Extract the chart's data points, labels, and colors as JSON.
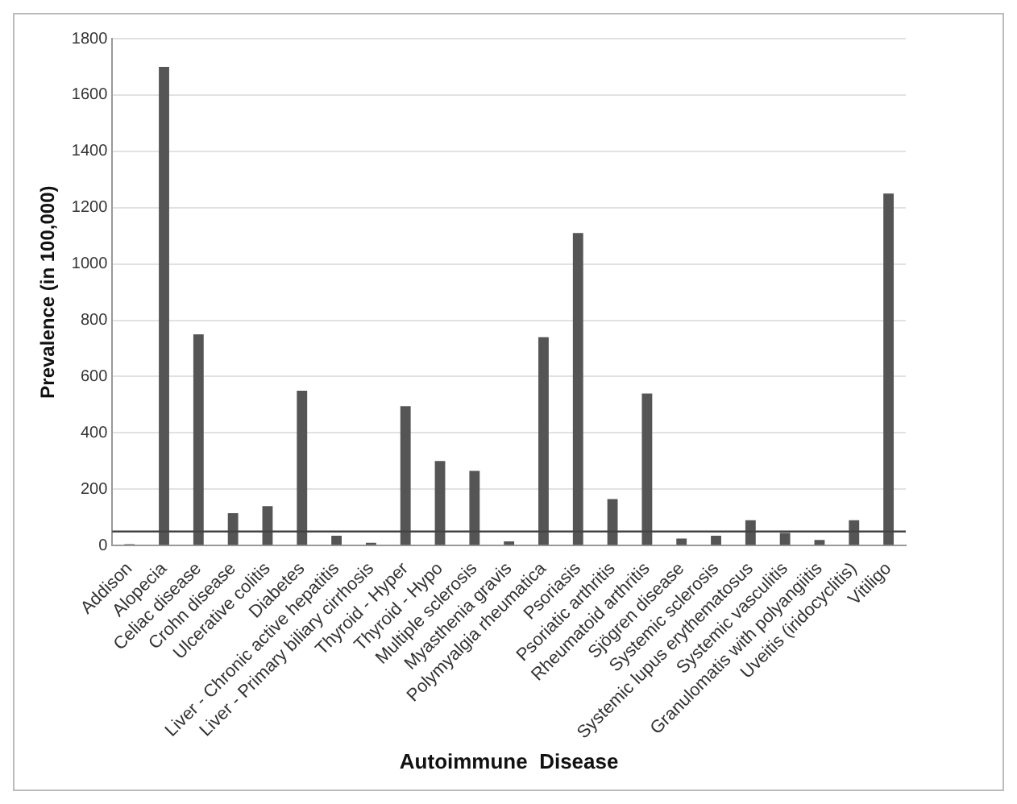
{
  "chart_data": {
    "type": "bar",
    "xlabel": "Autoimmune  Disease",
    "ylabel": "Prevalence (in 100,000)",
    "categories": [
      "Addison",
      "Alopecia",
      "Celiac disease",
      "Crohn disease",
      "Ulcerative colitis",
      "Diabetes",
      "Liver - Chronic active hepatitis",
      "Liver - Primary biliary cirrhosis",
      "Thyroid - Hyper",
      "Thyroid - Hypo",
      "Multiple sclerosis",
      "Myasthenia gravis",
      "Polymyalgia rheumatica",
      "Psoriasis",
      "Psoriatic arthritis",
      "Rheumatoid arthritis",
      "Sjögren disease",
      "Systemic sclerosis",
      "Systemic lupus erythematosus",
      "Systemic vasculitis",
      "Granulomatis with polyangiitis",
      "Uveitis (iridocyclitis)",
      "Vitiligo"
    ],
    "values": [
      5,
      1700,
      750,
      115,
      140,
      550,
      35,
      10,
      495,
      300,
      265,
      15,
      740,
      1110,
      165,
      540,
      25,
      35,
      90,
      45,
      20,
      90,
      1250
    ],
    "color": "#555555",
    "ylim": [
      0,
      1800
    ],
    "yticks": [
      0,
      200,
      400,
      600,
      800,
      1000,
      1200,
      1400,
      1600,
      1800
    ],
    "grid": "y",
    "ref_lines": [
      {
        "axis": "y",
        "value": 50,
        "color": "#444444"
      }
    ],
    "legend": false
  }
}
